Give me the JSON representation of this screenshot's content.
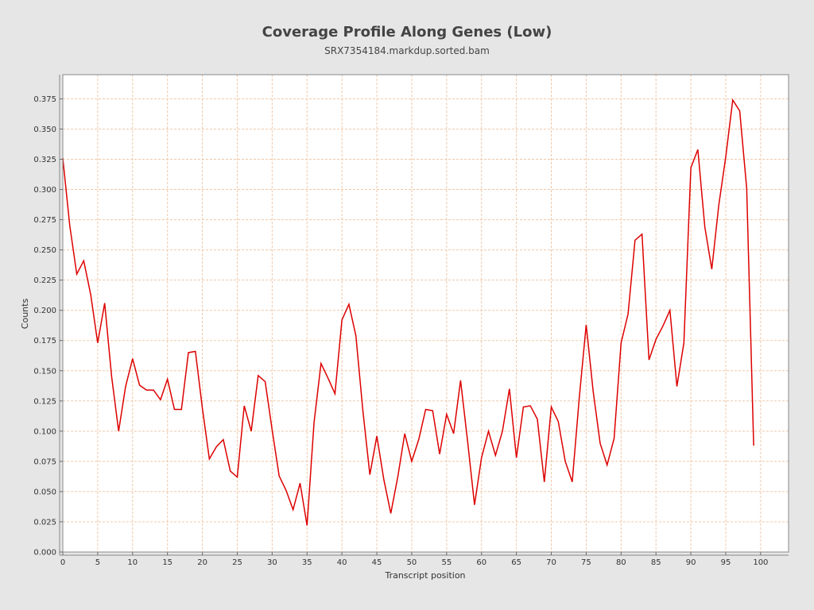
{
  "chart_data": {
    "type": "line",
    "title": "Coverage Profile Along Genes (Low)",
    "subtitle": "SRX7354184.markdup.sorted.bam",
    "xlabel": "Transcript position",
    "ylabel": "Counts",
    "xlim": [
      0,
      104
    ],
    "ylim": [
      0,
      0.395
    ],
    "x_ticks": [
      0,
      5,
      10,
      15,
      20,
      25,
      30,
      35,
      40,
      45,
      50,
      55,
      60,
      65,
      70,
      75,
      80,
      85,
      90,
      95,
      100
    ],
    "y_ticks": [
      0.0,
      0.025,
      0.05,
      0.075,
      0.1,
      0.125,
      0.15,
      0.175,
      0.2,
      0.225,
      0.25,
      0.275,
      0.3,
      0.325,
      0.35,
      0.375
    ],
    "grid": true,
    "line_color": "#dd0000",
    "grid_color": "#f0c8a8",
    "series": [
      {
        "values": [
          0.326,
          0.27,
          0.23,
          0.241,
          0.213,
          0.173,
          0.206,
          0.145,
          0.1,
          0.137,
          0.16,
          0.138,
          0.134,
          0.134,
          0.126,
          0.143,
          0.118,
          0.118,
          0.165,
          0.166,
          0.119,
          0.077,
          0.087,
          0.093,
          0.067,
          0.062,
          0.121,
          0.1,
          0.146,
          0.141,
          0.101,
          0.063,
          0.051,
          0.035,
          0.057,
          0.022,
          0.107,
          0.156,
          0.144,
          0.131,
          0.192,
          0.205,
          0.179,
          0.117,
          0.064,
          0.096,
          0.06,
          0.032,
          0.062,
          0.098,
          0.075,
          0.093,
          0.118,
          0.117,
          0.081,
          0.114,
          0.098,
          0.142,
          0.092,
          0.039,
          0.078,
          0.1,
          0.08,
          0.1,
          0.135,
          0.078,
          0.12,
          0.121,
          0.11,
          0.058,
          0.12,
          0.108,
          0.075,
          0.058,
          0.127,
          0.188,
          0.133,
          0.09,
          0.072,
          0.094,
          0.173,
          0.197,
          0.258,
          0.263,
          0.159,
          0.176,
          0.187,
          0.2,
          0.137,
          0.173,
          0.318,
          0.333,
          0.269,
          0.234,
          0.287,
          0.327,
          0.374,
          0.365,
          0.301,
          0.088
        ]
      }
    ]
  }
}
